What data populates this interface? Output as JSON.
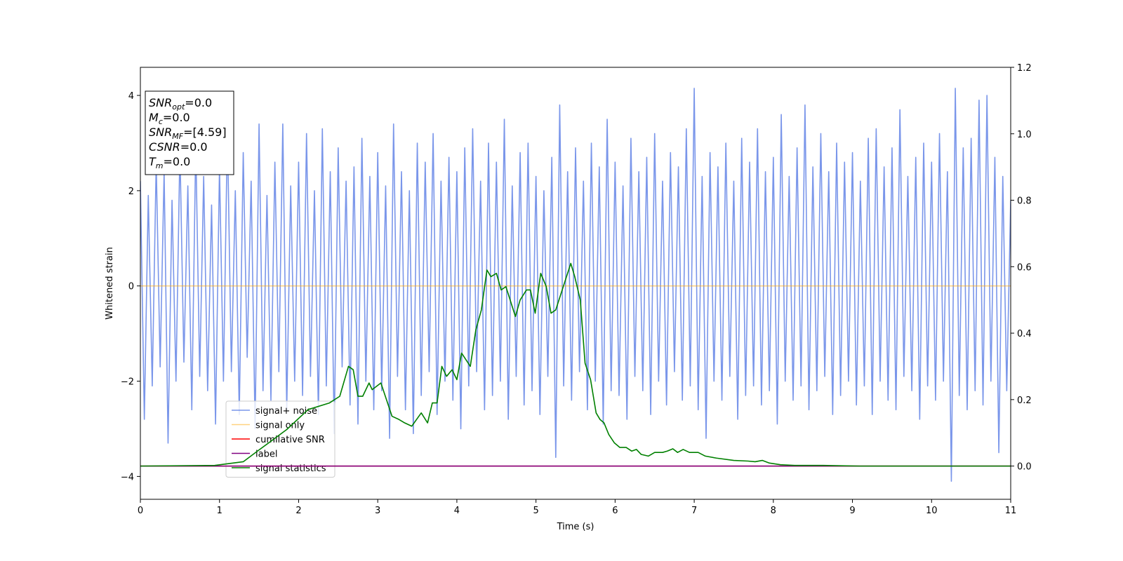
{
  "chart_data": {
    "type": "line",
    "xlabel": "Time (s)",
    "ylabel": "Whitened strain",
    "xlim": [
      0,
      11
    ],
    "xticks": [
      0,
      1,
      2,
      3,
      4,
      5,
      6,
      7,
      8,
      9,
      10,
      11
    ],
    "ylim": [
      -4.48,
      4.59
    ],
    "yticks": [
      {
        "value": -4,
        "label": "−4"
      },
      {
        "value": -2,
        "label": "−2"
      },
      0,
      2,
      4
    ],
    "y2lim": [
      -0.1,
      1.2
    ],
    "y2ticks": [
      {
        "value": 0,
        "label": "0.0"
      },
      0.2,
      0.4,
      0.6,
      0.8,
      {
        "value": 1,
        "label": "1.0"
      },
      1.2
    ],
    "legend": "lower left",
    "annotation": [
      {
        "symbol": "SNR",
        "sub": "opt",
        "text": "=0.0"
      },
      {
        "symbol": "M",
        "sub": "c",
        "text": "=0.0"
      },
      {
        "symbol": "SNR",
        "sub": "MF",
        "text": "=[4.59]"
      },
      {
        "symbol": "CSNR",
        "text": "=0.0"
      },
      {
        "symbol": "T",
        "sub": "m",
        "text": "=0.0"
      }
    ],
    "series": [
      {
        "name": "signal+ noise",
        "color": "#4169e1",
        "alpha": 0.7,
        "x": [
          0,
          0.05,
          0.1,
          0.15,
          0.2,
          0.25,
          0.3,
          0.35,
          0.4,
          0.45,
          0.5,
          0.55,
          0.6,
          0.65,
          0.7,
          0.75,
          0.8,
          0.85,
          0.9,
          0.95,
          1,
          1.05,
          1.1,
          1.15,
          1.2,
          1.25,
          1.3,
          1.35,
          1.4,
          1.45,
          1.5,
          1.55,
          1.6,
          1.65,
          1.7,
          1.75,
          1.8,
          1.85,
          1.9,
          1.95,
          2,
          2.05,
          2.1,
          2.15,
          2.2,
          2.25,
          2.3,
          2.35,
          2.4,
          2.45,
          2.5,
          2.55,
          2.6,
          2.65,
          2.7,
          2.75,
          2.8,
          2.85,
          2.9,
          2.95,
          3,
          3.05,
          3.1,
          3.15,
          3.2,
          3.25,
          3.3,
          3.35,
          3.4,
          3.45,
          3.5,
          3.55,
          3.6,
          3.65,
          3.7,
          3.75,
          3.8,
          3.85,
          3.9,
          3.95,
          4,
          4.05,
          4.1,
          4.15,
          4.2,
          4.25,
          4.3,
          4.35,
          4.4,
          4.45,
          4.5,
          4.55,
          4.6,
          4.65,
          4.7,
          4.75,
          4.8,
          4.85,
          4.9,
          4.95,
          5,
          5.05,
          5.1,
          5.15,
          5.2,
          5.25,
          5.3,
          5.35,
          5.4,
          5.45,
          5.5,
          5.55,
          5.6,
          5.65,
          5.7,
          5.75,
          5.8,
          5.85,
          5.9,
          5.95,
          6,
          6.05,
          6.1,
          6.15,
          6.2,
          6.25,
          6.3,
          6.35,
          6.4,
          6.45,
          6.5,
          6.55,
          6.6,
          6.65,
          6.7,
          6.75,
          6.8,
          6.85,
          6.9,
          6.95,
          7,
          7.05,
          7.1,
          7.15,
          7.2,
          7.25,
          7.3,
          7.35,
          7.4,
          7.45,
          7.5,
          7.55,
          7.6,
          7.65,
          7.7,
          7.75,
          7.8,
          7.85,
          7.9,
          7.95,
          8,
          8.05,
          8.1,
          8.15,
          8.2,
          8.25,
          8.3,
          8.35,
          8.4,
          8.45,
          8.5,
          8.55,
          8.6,
          8.65,
          8.7,
          8.75,
          8.8,
          8.85,
          8.9,
          8.95,
          9,
          9.05,
          9.1,
          9.15,
          9.2,
          9.25,
          9.3,
          9.35,
          9.4,
          9.45,
          9.5,
          9.55,
          9.6,
          9.65,
          9.7,
          9.75,
          9.8,
          9.85,
          9.9,
          9.95,
          10,
          10.05,
          10.1,
          10.15,
          10.2,
          10.25,
          10.3,
          10.35,
          10.4,
          10.45,
          10.5,
          10.55,
          10.6,
          10.65,
          10.7,
          10.75,
          10.8,
          10.85,
          10.9,
          10.95,
          11
        ],
        "values": [
          2.2,
          -2.8,
          1.9,
          -2.1,
          2.6,
          -1.7,
          2.4,
          -3.3,
          1.8,
          -2.0,
          2.9,
          -1.6,
          2.1,
          -2.6,
          3.0,
          -1.9,
          2.3,
          -2.2,
          1.7,
          -2.9,
          2.5,
          -2.0,
          3.3,
          -1.8,
          2.0,
          -2.7,
          2.8,
          -1.5,
          2.2,
          -3.0,
          3.4,
          -2.2,
          1.9,
          -2.4,
          2.6,
          -1.8,
          3.4,
          -2.6,
          2.1,
          -2.0,
          2.6,
          -2.3,
          3.2,
          -1.9,
          2.0,
          -2.7,
          3.3,
          -2.1,
          2.4,
          -3.1,
          2.9,
          -1.7,
          2.2,
          -2.5,
          2.5,
          -2.9,
          3.1,
          -2.0,
          2.3,
          -2.6,
          2.8,
          -2.2,
          2.1,
          -3.2,
          3.4,
          -1.9,
          2.4,
          -2.6,
          2.0,
          -3.1,
          3.0,
          -2.3,
          2.6,
          -1.8,
          3.2,
          -2.7,
          2.2,
          -2.0,
          2.7,
          -2.4,
          2.4,
          -3.0,
          2.9,
          -2.1,
          3.3,
          -1.8,
          2.2,
          -2.6,
          3.0,
          -2.3,
          2.6,
          -2.0,
          3.5,
          -2.8,
          2.1,
          -1.9,
          2.8,
          -2.5,
          3.0,
          -2.2,
          2.3,
          -2.7,
          2.0,
          -1.9,
          2.7,
          -3.6,
          3.8,
          -2.1,
          2.4,
          -2.4,
          2.9,
          -1.8,
          2.2,
          -2.6,
          3.0,
          -2.0,
          2.5,
          -2.9,
          3.5,
          -2.2,
          2.6,
          -2.3,
          2.1,
          -2.8,
          3.1,
          -1.9,
          2.4,
          -2.2,
          2.7,
          -2.7,
          3.2,
          -2.0,
          2.2,
          -2.5,
          2.8,
          -1.8,
          2.5,
          -2.4,
          3.3,
          -2.1,
          4.15,
          -2.6,
          2.3,
          -3.2,
          2.8,
          -2.0,
          2.5,
          -2.4,
          3.0,
          -1.9,
          2.2,
          -2.8,
          3.1,
          -2.3,
          2.6,
          -2.1,
          3.3,
          -2.5,
          2.4,
          -2.2,
          2.7,
          -2.9,
          3.6,
          -2.0,
          2.3,
          -2.4,
          2.9,
          -2.1,
          3.8,
          -2.6,
          2.5,
          -2.2,
          3.2,
          -1.9,
          2.4,
          -2.7,
          3.0,
          -2.3,
          2.6,
          -2.0,
          2.8,
          -2.5,
          2.2,
          -2.1,
          3.1,
          -2.7,
          3.3,
          -2.0,
          2.5,
          -2.4,
          2.9,
          -2.6,
          3.7,
          -1.9,
          2.3,
          -2.2,
          2.7,
          -2.8,
          3.0,
          -2.1,
          2.6,
          -2.4,
          3.2,
          -2.0,
          2.4,
          -4.1,
          4.15,
          -2.3,
          2.9,
          -2.6,
          3.1,
          -2.2,
          3.9,
          -2.5,
          4.0,
          -2.0,
          2.7,
          -3.5,
          2.3,
          -2.2,
          1.8
        ]
      },
      {
        "name": "signal only",
        "color": "#ffa500",
        "alpha": 0.5,
        "x": [
          0,
          11
        ],
        "values": [
          0,
          0
        ]
      },
      {
        "name": "cumilative SNR",
        "color": "#ff0000",
        "axis": "y2",
        "x": [
          0,
          11
        ],
        "values": [
          0,
          0
        ]
      },
      {
        "name": "label",
        "color": "#800080",
        "axis": "y2",
        "x": [
          0,
          11
        ],
        "values": [
          0,
          0
        ]
      },
      {
        "name": "signal statistics",
        "color": "#008000",
        "axis": "y2",
        "x": [
          0,
          0.94,
          1.3,
          1.48,
          1.85,
          2.12,
          2.39,
          2.52,
          2.63,
          2.69,
          2.75,
          2.81,
          2.89,
          2.93,
          3.04,
          3.18,
          3.27,
          3.34,
          3.43,
          3.55,
          3.63,
          3.69,
          3.75,
          3.81,
          3.87,
          3.94,
          4.0,
          4.06,
          4.17,
          4.24,
          4.31,
          4.38,
          4.43,
          4.5,
          4.56,
          4.62,
          4.74,
          4.8,
          4.88,
          4.93,
          4.99,
          5.06,
          5.13,
          5.19,
          5.25,
          5.44,
          5.49,
          5.56,
          5.62,
          5.69,
          5.76,
          5.81,
          5.86,
          5.92,
          5.99,
          6.06,
          6.14,
          6.21,
          6.27,
          6.33,
          6.42,
          6.5,
          6.6,
          6.66,
          6.73,
          6.79,
          6.86,
          6.94,
          7.05,
          7.14,
          7.28,
          7.5,
          7.68,
          7.77,
          7.86,
          7.95,
          8.09,
          8.27,
          8.63,
          9.09,
          11
        ],
        "values": [
          0,
          0.002,
          0.013,
          0.045,
          0.11,
          0.17,
          0.19,
          0.21,
          0.3,
          0.29,
          0.21,
          0.21,
          0.25,
          0.23,
          0.25,
          0.15,
          0.14,
          0.13,
          0.12,
          0.16,
          0.13,
          0.19,
          0.19,
          0.3,
          0.27,
          0.29,
          0.26,
          0.34,
          0.3,
          0.41,
          0.47,
          0.59,
          0.57,
          0.58,
          0.53,
          0.54,
          0.45,
          0.5,
          0.53,
          0.53,
          0.46,
          0.58,
          0.54,
          0.46,
          0.47,
          0.61,
          0.57,
          0.5,
          0.31,
          0.26,
          0.16,
          0.14,
          0.13,
          0.095,
          0.07,
          0.056,
          0.056,
          0.045,
          0.05,
          0.035,
          0.03,
          0.041,
          0.041,
          0.045,
          0.052,
          0.041,
          0.05,
          0.041,
          0.041,
          0.03,
          0.024,
          0.017,
          0.015,
          0.013,
          0.017,
          0.009,
          0.004,
          0.002,
          0.002,
          0,
          0
        ]
      }
    ]
  }
}
